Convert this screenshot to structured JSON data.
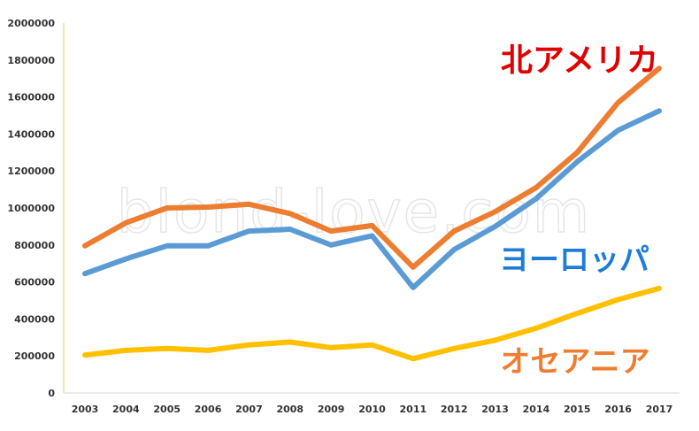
{
  "watermark": "blond-love.com",
  "chart_data": {
    "type": "line",
    "title": "",
    "xlabel": "",
    "ylabel": "",
    "categories": [
      "2003",
      "2004",
      "2005",
      "2006",
      "2007",
      "2008",
      "2009",
      "2010",
      "2011",
      "2012",
      "2013",
      "2014",
      "2015",
      "2016",
      "2017"
    ],
    "ylim": [
      0,
      2000000
    ],
    "yticks": [
      0,
      200000,
      400000,
      600000,
      800000,
      1000000,
      1200000,
      1400000,
      1600000,
      1800000,
      2000000
    ],
    "grid": false,
    "legend": "inline labels",
    "series": [
      {
        "name": "北アメリカ",
        "color": "#ED7D31",
        "label_color": "#E00000",
        "values": [
          795000,
          920000,
          1000000,
          1005000,
          1020000,
          970000,
          875000,
          905000,
          680000,
          875000,
          980000,
          1110000,
          1300000,
          1570000,
          1755000
        ]
      },
      {
        "name": "ヨーロッパ",
        "color": "#5B9BD5",
        "label_color": "#1F7CD6",
        "values": [
          645000,
          725000,
          795000,
          795000,
          875000,
          885000,
          800000,
          850000,
          570000,
          775000,
          900000,
          1050000,
          1250000,
          1420000,
          1525000
        ]
      },
      {
        "name": "オセアニア",
        "color": "#FFC000",
        "label_color": "#ED7D31",
        "values": [
          205000,
          230000,
          240000,
          230000,
          260000,
          275000,
          245000,
          260000,
          185000,
          240000,
          285000,
          350000,
          430000,
          505000,
          565000
        ]
      }
    ]
  }
}
